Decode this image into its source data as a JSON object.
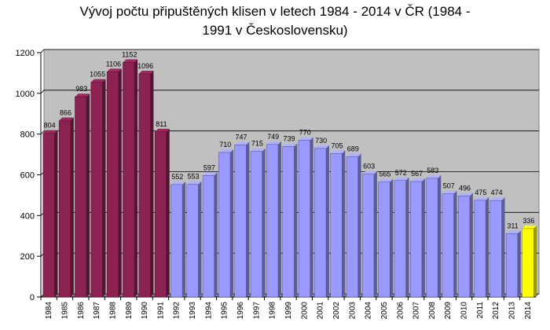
{
  "chart_data": {
    "type": "bar",
    "title_lines": [
      "Vývoj počtu připuštěných klisen v letech 1984 - 2014 v ČR (1984 -",
      "1991 v Československu)"
    ],
    "xlabel": "",
    "ylabel": "",
    "ylim": [
      0,
      1200
    ],
    "yticks": [
      0,
      200,
      400,
      600,
      800,
      1000,
      1200
    ],
    "grid": true,
    "categories": [
      "1984",
      "1985",
      "1986",
      "1987",
      "1988",
      "1989",
      "1990",
      "1991",
      "1992",
      "1993",
      "1994",
      "1995",
      "1996",
      "1997",
      "1998",
      "1999",
      "2000",
      "2001",
      "2002",
      "2003",
      "2004",
      "2005",
      "2006",
      "2007",
      "2008",
      "2009",
      "2010",
      "2011",
      "2012",
      "2013",
      "2014"
    ],
    "values": [
      804,
      866,
      983,
      1055,
      1106,
      1152,
      1096,
      811,
      552,
      553,
      597,
      710,
      747,
      715,
      749,
      739,
      770,
      730,
      705,
      689,
      603,
      565,
      572,
      567,
      583,
      507,
      496,
      475,
      474,
      311,
      336
    ],
    "colors": {
      "czechoslovakia": "#8b2252",
      "czech_republic": "#9999ff",
      "highlight": "#ffff00",
      "plot_background": "#c0c0c0",
      "grid": "#000000"
    }
  }
}
